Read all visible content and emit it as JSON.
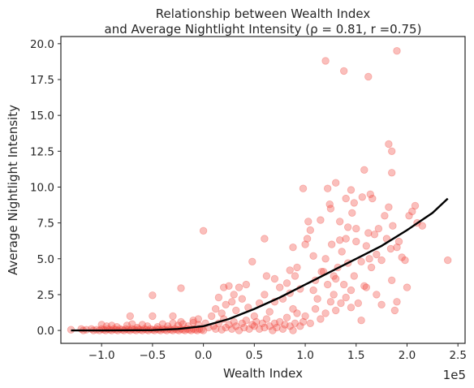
{
  "chart_data": {
    "type": "scatter",
    "title": [
      "Relationship between Wealth Index",
      "and Average Nightlight Intensity (ρ = 0.81, r =0.75)"
    ],
    "xlabel": "Wealth Index",
    "ylabel": "Average Nightlight Intensity",
    "x_offset_label": "1e5",
    "xlim": [
      -1.4,
      2.57
    ],
    "ylim": [
      -0.9,
      20.5
    ],
    "x_ticks": [
      -1.0,
      -0.5,
      0.0,
      0.5,
      1.0,
      1.5,
      2.0,
      2.5
    ],
    "x_tick_labels": [
      "−1.0",
      "−0.5",
      "0.0",
      "0.5",
      "1.0",
      "1.5",
      "2.0",
      "2.5"
    ],
    "y_ticks": [
      0.0,
      2.5,
      5.0,
      7.5,
      10.0,
      12.5,
      15.0,
      17.5,
      20.0
    ],
    "y_tick_labels": [
      "0.0",
      "2.5",
      "5.0",
      "7.5",
      "10.0",
      "12.5",
      "15.0",
      "17.5",
      "20.0"
    ],
    "grid": false,
    "point_color": "#f0493e",
    "point_alpha": 0.35,
    "line_color": "#000000",
    "points": [
      [
        -1.3,
        0.05
      ],
      [
        -1.2,
        0.1
      ],
      [
        -1.18,
        0.0
      ],
      [
        -1.15,
        0.05
      ],
      [
        -1.1,
        0.1
      ],
      [
        -1.08,
        0.0
      ],
      [
        -1.05,
        0.05
      ],
      [
        -1.02,
        0.0
      ],
      [
        -1.0,
        0.1
      ],
      [
        -0.98,
        0.05
      ],
      [
        -0.96,
        0.0
      ],
      [
        -0.94,
        0.1
      ],
      [
        -0.92,
        0.05
      ],
      [
        -0.9,
        0.0
      ],
      [
        -0.88,
        0.1
      ],
      [
        -0.86,
        0.05
      ],
      [
        -0.84,
        0.0
      ],
      [
        -0.82,
        0.1
      ],
      [
        -0.8,
        0.05
      ],
      [
        -0.78,
        0.0
      ],
      [
        -0.76,
        0.1
      ],
      [
        -0.74,
        0.05
      ],
      [
        -0.72,
        0.0
      ],
      [
        -0.7,
        0.1
      ],
      [
        -0.68,
        0.05
      ],
      [
        -0.66,
        0.0
      ],
      [
        -0.64,
        0.1
      ],
      [
        -0.62,
        0.05
      ],
      [
        -0.6,
        0.0
      ],
      [
        -0.58,
        0.1
      ],
      [
        -0.56,
        0.05
      ],
      [
        -0.54,
        0.0
      ],
      [
        -0.52,
        0.1
      ],
      [
        -0.5,
        0.05
      ],
      [
        -0.48,
        0.0
      ],
      [
        -0.46,
        0.1
      ],
      [
        -0.44,
        0.05
      ],
      [
        -0.42,
        0.0
      ],
      [
        -0.4,
        0.1
      ],
      [
        -0.38,
        0.05
      ],
      [
        -0.36,
        0.0
      ],
      [
        -0.34,
        0.1
      ],
      [
        -0.32,
        0.05
      ],
      [
        -0.3,
        0.0
      ],
      [
        -0.28,
        0.1
      ],
      [
        -0.26,
        0.05
      ],
      [
        -0.24,
        0.0
      ],
      [
        -0.22,
        0.1
      ],
      [
        -0.2,
        0.05
      ],
      [
        -0.18,
        0.0
      ],
      [
        -0.16,
        0.1
      ],
      [
        -0.14,
        0.05
      ],
      [
        -0.12,
        0.0
      ],
      [
        -0.1,
        0.1
      ],
      [
        -0.08,
        0.05
      ],
      [
        -0.06,
        0.0
      ],
      [
        -0.04,
        0.1
      ],
      [
        -0.02,
        0.05
      ],
      [
        0.0,
        0.0
      ],
      [
        -0.95,
        0.3
      ],
      [
        -0.85,
        0.25
      ],
      [
        -0.75,
        0.35
      ],
      [
        -0.65,
        0.2
      ],
      [
        -0.55,
        0.3
      ],
      [
        -0.45,
        0.25
      ],
      [
        -0.35,
        0.3
      ],
      [
        -0.25,
        0.35
      ],
      [
        -0.15,
        0.3
      ],
      [
        -0.05,
        0.4
      ],
      [
        -1.0,
        0.4
      ],
      [
        -0.9,
        0.35
      ],
      [
        -0.7,
        0.45
      ],
      [
        -0.6,
        0.4
      ],
      [
        -0.4,
        0.45
      ],
      [
        -0.3,
        0.5
      ],
      [
        -0.2,
        0.45
      ],
      [
        -0.1,
        0.55
      ],
      [
        0.02,
        0.5
      ],
      [
        -0.72,
        1.0
      ],
      [
        -0.5,
        1.0
      ],
      [
        -0.3,
        1.0
      ],
      [
        -0.1,
        0.7
      ],
      [
        -0.05,
        0.8
      ],
      [
        -0.22,
        0.6
      ],
      [
        -0.5,
        2.45
      ],
      [
        -0.22,
        2.95
      ],
      [
        0.0,
        6.95
      ],
      [
        0.05,
        0.2
      ],
      [
        0.1,
        0.3
      ],
      [
        0.12,
        0.1
      ],
      [
        0.15,
        0.5
      ],
      [
        0.18,
        0.05
      ],
      [
        0.2,
        0.8
      ],
      [
        0.22,
        0.2
      ],
      [
        0.25,
        0.4
      ],
      [
        0.28,
        0.1
      ],
      [
        0.3,
        0.6
      ],
      [
        0.32,
        0.3
      ],
      [
        0.35,
        0.0
      ],
      [
        0.38,
        0.5
      ],
      [
        0.4,
        0.2
      ],
      [
        0.42,
        0.7
      ],
      [
        0.45,
        0.1
      ],
      [
        0.48,
        0.4
      ],
      [
        0.5,
        0.3
      ],
      [
        0.52,
        0.6
      ],
      [
        0.55,
        0.1
      ],
      [
        0.58,
        0.5
      ],
      [
        0.6,
        0.2
      ],
      [
        0.62,
        0.8
      ],
      [
        0.65,
        0.3
      ],
      [
        0.68,
        0.0
      ],
      [
        0.7,
        0.5
      ],
      [
        0.72,
        0.2
      ],
      [
        0.75,
        0.6
      ],
      [
        0.78,
        0.1
      ],
      [
        0.8,
        0.4
      ],
      [
        0.82,
        0.9
      ],
      [
        0.85,
        0.3
      ],
      [
        0.88,
        0.0
      ],
      [
        0.9,
        0.5
      ],
      [
        0.92,
        1.2
      ],
      [
        0.95,
        0.3
      ],
      [
        0.98,
        0.6
      ],
      [
        0.08,
        1.0
      ],
      [
        0.12,
        1.5
      ],
      [
        0.18,
        1.2
      ],
      [
        0.22,
        1.8
      ],
      [
        0.28,
        2.0
      ],
      [
        0.32,
        1.4
      ],
      [
        0.38,
        2.2
      ],
      [
        0.44,
        1.6
      ],
      [
        0.5,
        1.0
      ],
      [
        0.55,
        1.9
      ],
      [
        0.6,
        2.5
      ],
      [
        0.65,
        1.3
      ],
      [
        0.7,
        2.0
      ],
      [
        0.75,
        3.0
      ],
      [
        0.78,
        2.2
      ],
      [
        0.82,
        3.3
      ],
      [
        0.85,
        2.6
      ],
      [
        0.88,
        1.5
      ],
      [
        0.9,
        3.8
      ],
      [
        0.95,
        2.9
      ],
      [
        0.15,
        2.3
      ],
      [
        0.2,
        3.0
      ],
      [
        0.25,
        3.1
      ],
      [
        0.3,
        2.5
      ],
      [
        0.35,
        3.0
      ],
      [
        0.42,
        3.2
      ],
      [
        0.48,
        4.8
      ],
      [
        0.6,
        6.4
      ],
      [
        0.62,
        3.8
      ],
      [
        0.7,
        3.6
      ],
      [
        0.85,
        4.2
      ],
      [
        0.88,
        5.8
      ],
      [
        0.92,
        4.4
      ],
      [
        1.0,
        6.0
      ],
      [
        1.02,
        6.4
      ],
      [
        1.05,
        7.0
      ],
      [
        1.08,
        2.8
      ],
      [
        1.1,
        3.5
      ],
      [
        1.12,
        2.2
      ],
      [
        1.15,
        7.7
      ],
      [
        1.18,
        4.1
      ],
      [
        1.2,
        5.0
      ],
      [
        1.22,
        3.2
      ],
      [
        1.25,
        8.5
      ],
      [
        1.26,
        6.0
      ],
      [
        1.28,
        2.5
      ],
      [
        1.3,
        3.6
      ],
      [
        1.32,
        4.4
      ],
      [
        1.35,
        1.9
      ],
      [
        1.36,
        5.5
      ],
      [
        1.38,
        3.2
      ],
      [
        1.4,
        6.4
      ],
      [
        1.42,
        4.7
      ],
      [
        1.45,
        2.8
      ],
      [
        1.46,
        8.2
      ],
      [
        1.48,
        3.8
      ],
      [
        1.5,
        6.2
      ],
      [
        1.52,
        1.9
      ],
      [
        1.55,
        4.8
      ],
      [
        1.58,
        3.1
      ],
      [
        1.6,
        5.9
      ],
      [
        1.62,
        6.8
      ],
      [
        1.63,
        5.0
      ],
      [
        1.65,
        4.4
      ],
      [
        1.66,
        9.2
      ],
      [
        1.68,
        6.7
      ],
      [
        1.7,
        5.3
      ],
      [
        1.72,
        7.1
      ],
      [
        1.75,
        4.9
      ],
      [
        1.78,
        8.0
      ],
      [
        1.8,
        6.4
      ],
      [
        1.82,
        8.6
      ],
      [
        1.84,
        5.7
      ],
      [
        1.86,
        7.3
      ],
      [
        1.88,
        1.4
      ],
      [
        1.9,
        5.8
      ],
      [
        1.92,
        6.2
      ],
      [
        1.95,
        5.1
      ],
      [
        1.98,
        4.9
      ],
      [
        2.0,
        3.0
      ],
      [
        2.02,
        8.0
      ],
      [
        2.05,
        8.3
      ],
      [
        2.08,
        8.7
      ],
      [
        2.1,
        7.5
      ],
      [
        2.15,
        7.3
      ],
      [
        2.4,
        4.9
      ],
      [
        1.0,
        1.0
      ],
      [
        1.05,
        0.5
      ],
      [
        1.1,
        1.5
      ],
      [
        1.15,
        0.8
      ],
      [
        1.2,
        1.2
      ],
      [
        1.25,
        2.0
      ],
      [
        1.3,
        1.4
      ],
      [
        1.4,
        2.3
      ],
      [
        1.45,
        1.6
      ],
      [
        1.55,
        0.7
      ],
      [
        1.6,
        3.0
      ],
      [
        1.7,
        2.5
      ],
      [
        1.75,
        1.8
      ],
      [
        1.85,
        3.5
      ],
      [
        1.9,
        2.0
      ],
      [
        1.03,
        7.6
      ],
      [
        1.08,
        5.2
      ],
      [
        1.16,
        4.1
      ],
      [
        1.22,
        9.9
      ],
      [
        1.28,
        3.8
      ],
      [
        1.34,
        7.6
      ],
      [
        1.4,
        9.2
      ],
      [
        1.48,
        8.9
      ],
      [
        1.56,
        9.3
      ],
      [
        1.64,
        9.5
      ],
      [
        1.24,
        8.8
      ],
      [
        1.34,
        6.3
      ],
      [
        1.42,
        7.2
      ],
      [
        1.5,
        7.1
      ],
      [
        0.98,
        9.9
      ],
      [
        1.2,
        18.8
      ],
      [
        1.38,
        18.1
      ],
      [
        1.62,
        17.7
      ],
      [
        1.9,
        19.5
      ],
      [
        1.82,
        13.0
      ],
      [
        1.85,
        12.5
      ],
      [
        1.85,
        11.0
      ],
      [
        1.58,
        11.2
      ],
      [
        1.45,
        9.8
      ],
      [
        1.3,
        10.3
      ]
    ],
    "trend_line": [
      [
        -1.3,
        0.0
      ],
      [
        -1.0,
        0.0
      ],
      [
        -0.5,
        0.02
      ],
      [
        -0.25,
        0.1
      ],
      [
        0.0,
        0.3
      ],
      [
        0.25,
        0.8
      ],
      [
        0.5,
        1.5
      ],
      [
        0.75,
        2.3
      ],
      [
        1.0,
        3.2
      ],
      [
        1.25,
        4.1
      ],
      [
        1.5,
        5.0
      ],
      [
        1.75,
        5.9
      ],
      [
        2.0,
        7.0
      ],
      [
        2.25,
        8.2
      ],
      [
        2.4,
        9.2
      ]
    ]
  }
}
